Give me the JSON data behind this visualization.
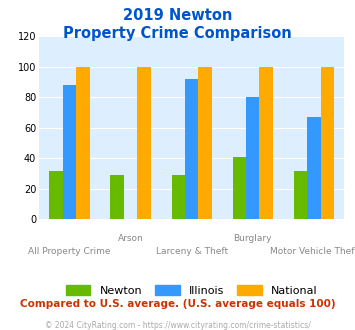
{
  "title_line1": "2019 Newton",
  "title_line2": "Property Crime Comparison",
  "categories": [
    "All Property Crime",
    "Arson",
    "Larceny & Theft",
    "Burglary",
    "Motor Vehicle Theft"
  ],
  "category_labels_top": [
    "",
    "Arson",
    "",
    "Burglary",
    ""
  ],
  "category_labels_bottom": [
    "All Property Crime",
    "",
    "Larceny & Theft",
    "",
    "Motor Vehicle Theft"
  ],
  "newton_values": [
    32,
    29,
    29,
    41,
    32
  ],
  "illinois_values": [
    88,
    0,
    92,
    80,
    67
  ],
  "national_values": [
    100,
    100,
    100,
    100,
    100
  ],
  "newton_color": "#66bb00",
  "illinois_color": "#3399ff",
  "national_color": "#ffaa00",
  "ylim": [
    0,
    120
  ],
  "yticks": [
    0,
    20,
    40,
    60,
    80,
    100,
    120
  ],
  "bg_color": "#ddeeff",
  "title_color": "#0055cc",
  "footer_text": "Compared to U.S. average. (U.S. average equals 100)",
  "footer_color": "#cc3300",
  "copyright_text": "© 2024 CityRating.com - https://www.cityrating.com/crime-statistics/",
  "copyright_color": "#aaaaaa",
  "legend_labels": [
    "Newton",
    "Illinois",
    "National"
  ],
  "xlabel_top_color": "#888888",
  "xlabel_bottom_color": "#888888"
}
